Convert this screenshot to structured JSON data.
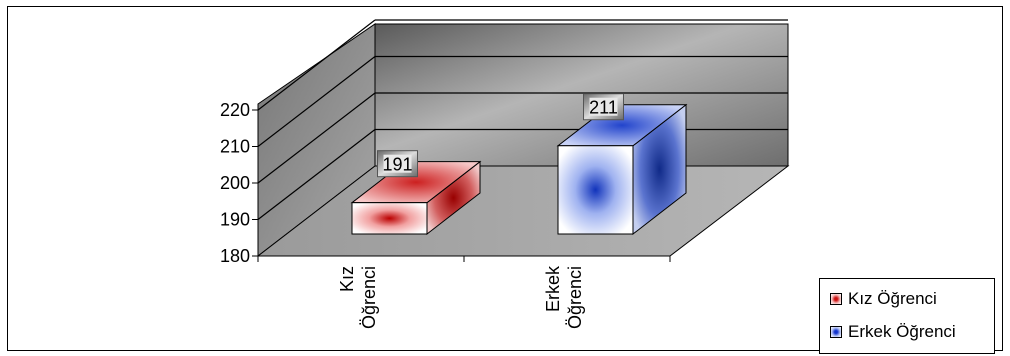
{
  "chart_data": {
    "type": "bar",
    "title": "",
    "xlabel": "",
    "ylabel": "",
    "categories": [
      "Kız Öğrenci",
      "Erkek Öğrenci"
    ],
    "category_label_lines": [
      [
        "Kız",
        "Öğrenci"
      ],
      [
        "Erkek",
        "Öğrenci"
      ]
    ],
    "values": [
      191,
      211
    ],
    "data_labels": [
      "191",
      "211"
    ],
    "ylim": [
      180,
      220
    ],
    "yticks": [
      180,
      190,
      200,
      210,
      220
    ],
    "ytick_labels": [
      "180",
      "190",
      "200",
      "210",
      "220"
    ],
    "grid": true,
    "three_d": true,
    "legend": {
      "placement": "bottom-right",
      "entries": [
        "Kız Öğrenci",
        "Erkek Öğrenci"
      ]
    },
    "colors": {
      "series_1": "#cc1111",
      "series_2": "#1133cc",
      "wall": "#8a8a8a",
      "floor": "#a8a8a8",
      "gridline": "#000000"
    }
  }
}
